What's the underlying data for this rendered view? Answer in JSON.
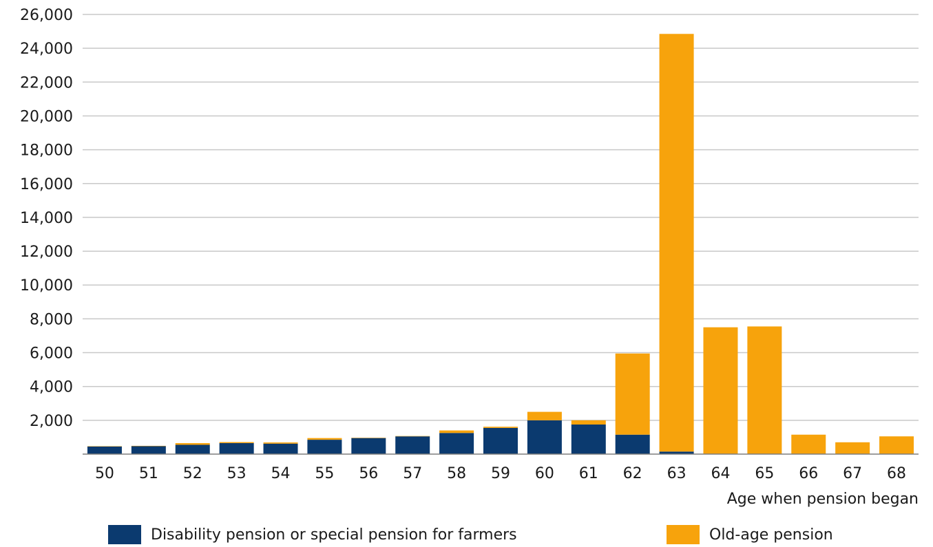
{
  "chart_data": {
    "type": "bar",
    "stacked": true,
    "title": "",
    "xlabel": "Age when pension began",
    "ylabel": "",
    "ylim": [
      0,
      26000
    ],
    "yticks": [
      2000,
      4000,
      6000,
      8000,
      10000,
      12000,
      14000,
      16000,
      18000,
      20000,
      22000,
      24000,
      26000
    ],
    "ytick_labels": [
      "2,000",
      "4,000",
      "6,000",
      "8,000",
      "10,000",
      "12,000",
      "14,000",
      "16,000",
      "18,000",
      "20,000",
      "22,000",
      "24,000",
      "26,000"
    ],
    "grid": "horizontal",
    "legend_position": "bottom",
    "categories": [
      "50",
      "51",
      "52",
      "53",
      "54",
      "55",
      "56",
      "57",
      "58",
      "59",
      "60",
      "61",
      "62",
      "63",
      "64",
      "65",
      "66",
      "67",
      "68"
    ],
    "series": [
      {
        "name": "Disability pension or special pension for farmers",
        "color": "#0b3a6f",
        "values": [
          450,
          470,
          550,
          650,
          620,
          850,
          950,
          1050,
          1250,
          1550,
          2000,
          1750,
          1150,
          150,
          0,
          0,
          0,
          0,
          0
        ]
      },
      {
        "name": "Old-age pension",
        "color": "#f7a30c",
        "values": [
          20,
          20,
          100,
          60,
          70,
          100,
          20,
          20,
          150,
          70,
          500,
          250,
          4800,
          24700,
          7500,
          7550,
          1150,
          700,
          1050
        ]
      }
    ]
  }
}
